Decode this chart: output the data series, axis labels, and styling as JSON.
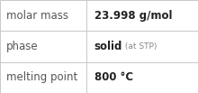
{
  "rows": [
    {
      "label": "molar mass",
      "value_parts": [
        {
          "text": "23.998 g/mol",
          "bold": true,
          "fontsize": 8.5
        }
      ]
    },
    {
      "label": "phase",
      "value_parts": [
        {
          "text": "solid",
          "bold": true,
          "fontsize": 8.5
        },
        {
          "text": " (at STP)",
          "bold": false,
          "fontsize": 6.5
        }
      ]
    },
    {
      "label": "melting point",
      "value_parts": [
        {
          "text": "800 °C",
          "bold": true,
          "fontsize": 8.5
        }
      ]
    }
  ],
  "label_fontsize": 8.5,
  "label_color": "#555555",
  "value_bold_color": "#222222",
  "value_small_color": "#888888",
  "background_color": "#ffffff",
  "grid_color": "#c8c8c8",
  "col_split": 0.435,
  "figwidth": 2.2,
  "figheight": 1.03,
  "dpi": 100
}
